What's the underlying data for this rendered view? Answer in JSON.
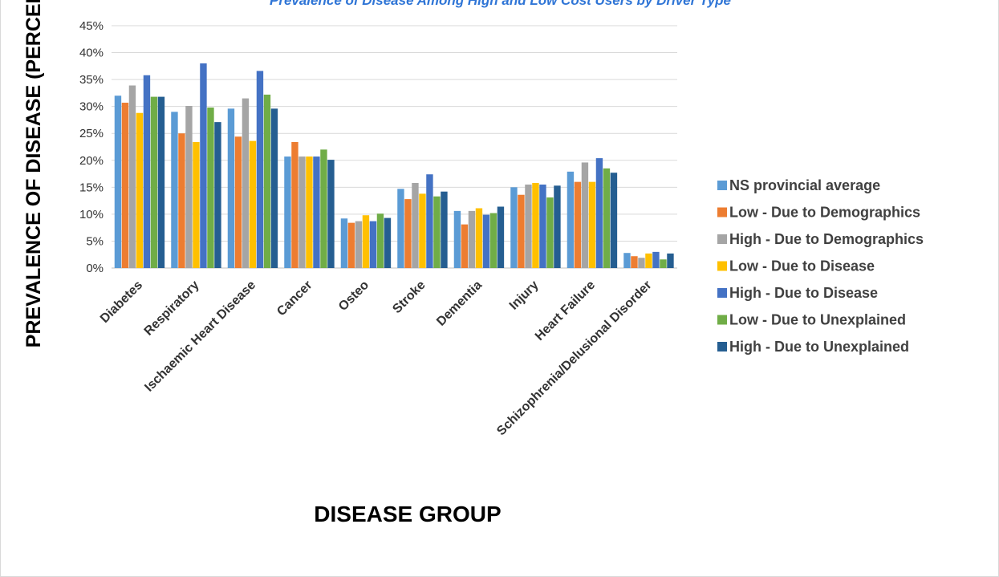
{
  "chart_data": {
    "type": "bar",
    "title": "Prevalence of Disease Among High and Low Cost Users by Driver Type",
    "xlabel": "DISEASE GROUP",
    "ylabel": "PREVALENCE OF DISEASE (PERCENT)",
    "ylim": [
      0,
      45
    ],
    "yticks": [
      "0%",
      "5%",
      "10%",
      "15%",
      "20%",
      "25%",
      "30%",
      "35%",
      "40%",
      "45%"
    ],
    "grid": true,
    "legend_position": "right",
    "categories": [
      "Diabetes",
      "Respiratory",
      "Ischaemic Heart Disease",
      "Cancer",
      "Osteo",
      "Stroke",
      "Dementia",
      "Injury",
      "Heart Failure",
      "Schizophrenia/Delusional Disorder"
    ],
    "series": [
      {
        "name": "NS provincial average",
        "color": "#5b9bd5",
        "values": [
          32,
          29,
          29.6,
          20.7,
          9.2,
          14.7,
          10.6,
          15,
          17.9,
          2.8
        ]
      },
      {
        "name": "Low - Due to Demographics",
        "color": "#ed7d31",
        "values": [
          30.7,
          25,
          24.4,
          23.4,
          8.4,
          12.8,
          8.1,
          13.6,
          16,
          2.2
        ]
      },
      {
        "name": "High - Due to Demographics",
        "color": "#a5a5a5",
        "values": [
          33.9,
          30.1,
          31.5,
          20.7,
          8.7,
          15.8,
          10.6,
          15.5,
          19.6,
          1.9
        ]
      },
      {
        "name": "Low - Due to Disease",
        "color": "#ffc000",
        "values": [
          28.8,
          23.4,
          23.6,
          20.7,
          9.8,
          13.8,
          11.1,
          15.8,
          16,
          2.7
        ]
      },
      {
        "name": "High - Due to Disease",
        "color": "#4472c4",
        "values": [
          35.8,
          38,
          36.6,
          20.7,
          8.7,
          17.4,
          9.9,
          15.5,
          20.4,
          3
        ]
      },
      {
        "name": "Low - Due to Unexplained",
        "color": "#70ad47",
        "values": [
          31.8,
          29.8,
          32.2,
          22,
          10.1,
          13.3,
          10.2,
          13.1,
          18.5,
          1.6
        ]
      },
      {
        "name": "High - Due to Unexplained",
        "color": "#255e91",
        "values": [
          31.8,
          27.1,
          29.6,
          20.1,
          9.3,
          14.2,
          11.4,
          15.3,
          17.7,
          2.7
        ]
      }
    ]
  }
}
